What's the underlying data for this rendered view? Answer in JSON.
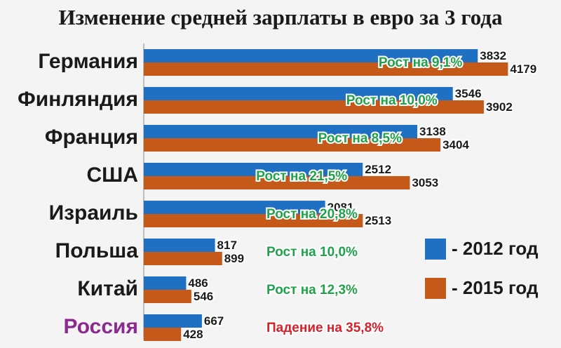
{
  "chart_data": {
    "type": "hbar",
    "title": "Изменение средней зарплаты в евро за 3 года",
    "categories": [
      "Германия",
      "Финляндия",
      "Франция",
      "США",
      "Израиль",
      "Польша",
      "Китай",
      "Россия"
    ],
    "category_colors": [
      "#1a1a1a",
      "#1a1a1a",
      "#1a1a1a",
      "#1a1a1a",
      "#1a1a1a",
      "#1a1a1a",
      "#1a1a1a",
      "#8b2a8f"
    ],
    "series": [
      {
        "name": "- 2012 год",
        "color": "#1f6fc2",
        "values": [
          3832,
          3546,
          3138,
          2512,
          2081,
          817,
          486,
          667
        ]
      },
      {
        "name": "- 2015 год",
        "color": "#c4591a",
        "values": [
          4179,
          3902,
          3404,
          3053,
          2513,
          899,
          546,
          428
        ]
      }
    ],
    "annotations": [
      "Рост на 9,1%",
      "Рост на 10,0%",
      "Рост на 8,5%",
      "Рост на 21,5%",
      "Рост на 20,8%",
      "Рост на 10,0%",
      "Рост на 12,3%",
      "Падение на 35,8%"
    ],
    "annotation_colors": [
      "#1fa34a",
      "#1fa34a",
      "#1fa34a",
      "#1fa34a",
      "#1fa34a",
      "#1fa34a",
      "#1fa34a",
      "#d8202a"
    ],
    "xlim": [
      0,
      4200
    ]
  }
}
